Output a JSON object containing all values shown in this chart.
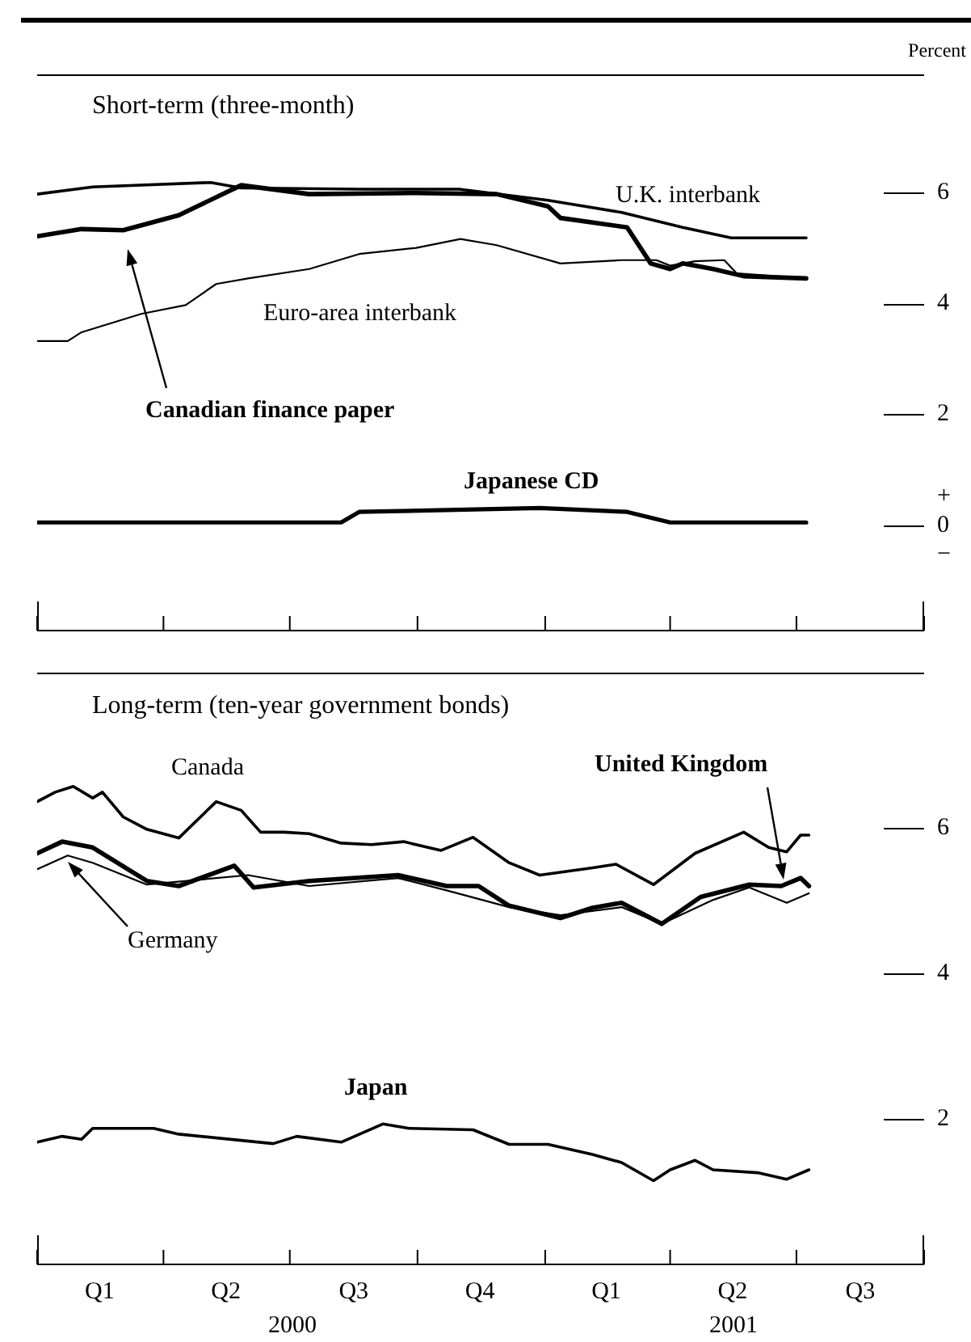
{
  "chart_data": [
    {
      "type": "line",
      "title": "Short-term (three-month)",
      "ylabel": "Percent",
      "xlim": [
        "2000-01-01",
        "2001-10-01"
      ],
      "xticks": [
        {
          "value": "2000-01-01",
          "label": null
        },
        {
          "value": "2000-04-01",
          "label": null
        },
        {
          "value": "2000-07-01",
          "label": null
        },
        {
          "value": "2000-10-01",
          "label": null
        },
        {
          "value": "2001-01-01",
          "label": null
        },
        {
          "value": "2001-04-01",
          "label": null
        },
        {
          "value": "2001-07-01",
          "label": null
        },
        {
          "value": "2001-10-01",
          "label": null
        }
      ],
      "ylim": [
        -1.9,
        8.1
      ],
      "yticks": [
        {
          "value": 0,
          "label": "+\n0\n−"
        },
        2,
        4,
        6
      ],
      "tick_labels": "y",
      "legend": false,
      "grid": false,
      "marker": "none",
      "line_style": "solid",
      "series": [
        {
          "name": "U.K. interbank",
          "color": "#000000",
          "x": [
            "2000-01-01",
            "2000-02-10",
            "2000-05-05",
            "2000-05-27",
            "2000-08-20",
            "2000-10-31",
            "2001-01-03",
            "2001-02-25",
            "2001-04-10",
            "2001-05-15",
            "2001-07-08"
          ],
          "values": [
            5.97,
            6.1,
            6.18,
            6.08,
            6.06,
            6.06,
            5.86,
            5.64,
            5.37,
            5.18,
            5.18
          ]
        },
        {
          "name": "Canadian finance paper",
          "color": "#000000",
          "x": [
            "2000-01-01",
            "2000-02-02",
            "2000-03-03",
            "2000-04-12",
            "2000-05-27",
            "2000-07-15",
            "2000-09-30",
            "2000-11-27",
            "2001-01-03",
            "2001-01-12",
            "2001-03-01",
            "2001-03-18",
            "2001-04-01",
            "2001-04-10",
            "2001-05-02",
            "2001-05-24",
            "2001-07-08"
          ],
          "values": [
            5.21,
            5.34,
            5.32,
            5.59,
            6.13,
            5.97,
            5.99,
            5.97,
            5.75,
            5.54,
            5.37,
            4.72,
            4.62,
            4.72,
            4.62,
            4.49,
            4.45
          ]
        },
        {
          "name": "Euro-area interbank",
          "color": "#000000",
          "x": [
            "2000-01-01",
            "2000-01-23",
            "2000-02-02",
            "2000-03-16",
            "2000-04-17",
            "2000-05-09",
            "2000-06-01",
            "2000-07-15",
            "2000-08-20",
            "2000-09-30",
            "2000-11-01",
            "2000-11-27",
            "2001-01-12",
            "2001-02-25",
            "2001-03-22",
            "2001-04-01",
            "2001-04-19",
            "2001-05-10",
            "2001-05-19",
            "2001-07-08"
          ],
          "values": [
            3.32,
            3.32,
            3.48,
            3.81,
            3.97,
            4.35,
            4.45,
            4.62,
            4.89,
            5.0,
            5.16,
            5.05,
            4.72,
            4.78,
            4.78,
            4.68,
            4.76,
            4.78,
            4.54,
            4.45
          ]
        },
        {
          "name": "Japanese CD",
          "color": "#000000",
          "x": [
            "2000-01-01",
            "2000-08-07",
            "2000-08-20",
            "2000-12-28",
            "2001-03-01",
            "2001-04-01",
            "2001-07-08"
          ],
          "values": [
            0.05,
            0.05,
            0.24,
            0.31,
            0.24,
            0.05,
            0.05
          ]
        }
      ]
    },
    {
      "type": "line",
      "title": "Long-term (ten-year government bonds)",
      "xlim": [
        "2000-01-01",
        "2001-10-01"
      ],
      "xticks": [
        {
          "value": "2000-01-01",
          "label": null
        },
        {
          "value": "2000-02-15",
          "label": "Q1"
        },
        {
          "value": "2000-04-01",
          "label": null
        },
        {
          "value": "2000-05-16",
          "label": "Q2"
        },
        {
          "value": "2000-07-01",
          "label": null
        },
        {
          "value": "2000-08-16",
          "label": "Q3"
        },
        {
          "value": "2000-10-01",
          "label": null
        },
        {
          "value": "2000-11-15",
          "label": "Q4"
        },
        {
          "value": "2001-01-01",
          "label": null
        },
        {
          "value": "2001-02-14",
          "label": "Q1"
        },
        {
          "value": "2001-04-01",
          "label": null
        },
        {
          "value": "2001-05-16",
          "label": "Q2"
        },
        {
          "value": "2001-07-01",
          "label": null
        },
        {
          "value": "2001-08-16",
          "label": "Q3"
        },
        {
          "value": "2001-10-01",
          "label": null
        }
      ],
      "ylim": [
        0,
        8
      ],
      "yticks": [
        2,
        4,
        6
      ],
      "legend": false,
      "grid": false,
      "marker": "none",
      "line_style": "solid",
      "annotations": [
        "2000",
        "2001"
      ],
      "series": [
        {
          "name": "Canada",
          "color": "#000000",
          "x": [
            "2000-01-01",
            "2000-01-14",
            "2000-01-27",
            "2000-02-10",
            "2000-02-17",
            "2000-03-03",
            "2000-03-20",
            "2000-04-12",
            "2000-05-09",
            "2000-05-27",
            "2000-06-10",
            "2000-06-27",
            "2000-07-15",
            "2000-08-07",
            "2000-08-29",
            "2000-09-21",
            "2000-10-18",
            "2000-11-10",
            "2000-12-06",
            "2000-12-28",
            "2001-02-04",
            "2001-02-21",
            "2001-03-20",
            "2001-04-19",
            "2001-05-24",
            "2001-06-11",
            "2001-06-24",
            "2001-07-04",
            "2001-07-10"
          ],
          "values": [
            6.36,
            6.49,
            6.57,
            6.41,
            6.49,
            6.15,
            5.98,
            5.86,
            6.36,
            6.24,
            5.94,
            5.94,
            5.92,
            5.79,
            5.77,
            5.81,
            5.69,
            5.87,
            5.52,
            5.35,
            5.45,
            5.5,
            5.22,
            5.65,
            5.94,
            5.73,
            5.67,
            5.9,
            5.9
          ]
        },
        {
          "name": "United Kingdom",
          "color": "#000000",
          "x": [
            "2000-01-01",
            "2000-01-19",
            "2000-02-10",
            "2000-03-20",
            "2000-04-12",
            "2000-05-22",
            "2000-06-05",
            "2000-07-15",
            "2000-09-17",
            "2000-10-22",
            "2000-11-14",
            "2000-12-06",
            "2001-01-12",
            "2001-02-04",
            "2001-02-25",
            "2001-03-26",
            "2001-04-23",
            "2001-05-28",
            "2001-06-20",
            "2001-07-04",
            "2001-07-10"
          ],
          "values": [
            5.65,
            5.81,
            5.73,
            5.27,
            5.2,
            5.48,
            5.18,
            5.27,
            5.35,
            5.2,
            5.2,
            4.93,
            4.76,
            4.9,
            4.97,
            4.68,
            5.05,
            5.22,
            5.2,
            5.31,
            5.2
          ]
        },
        {
          "name": "Germany",
          "color": "#000000",
          "x": [
            "2000-01-01",
            "2000-01-23",
            "2000-02-10",
            "2000-03-20",
            "2000-06-01",
            "2000-07-15",
            "2000-09-17",
            "2000-10-22",
            "2000-12-06",
            "2001-01-12",
            "2001-02-25",
            "2001-03-26",
            "2001-05-02",
            "2001-05-28",
            "2001-06-24",
            "2001-07-10"
          ],
          "values": [
            5.43,
            5.62,
            5.52,
            5.22,
            5.35,
            5.2,
            5.31,
            5.14,
            4.91,
            4.8,
            4.91,
            4.68,
            5.01,
            5.18,
            4.97,
            5.1
          ]
        },
        {
          "name": "Japan",
          "color": "#000000",
          "x": [
            "2000-01-01",
            "2000-01-19",
            "2000-02-02",
            "2000-02-10",
            "2000-03-25",
            "2000-04-12",
            "2000-06-19",
            "2000-07-06",
            "2000-08-07",
            "2000-09-06",
            "2000-09-25",
            "2000-11-10",
            "2000-12-06",
            "2001-01-03",
            "2001-02-04",
            "2001-02-25",
            "2001-03-20",
            "2001-04-01",
            "2001-04-19",
            "2001-05-02",
            "2001-06-03",
            "2001-06-24",
            "2001-07-10"
          ],
          "values": [
            1.68,
            1.76,
            1.72,
            1.87,
            1.87,
            1.79,
            1.66,
            1.76,
            1.68,
            1.93,
            1.87,
            1.85,
            1.65,
            1.65,
            1.51,
            1.4,
            1.15,
            1.3,
            1.43,
            1.3,
            1.26,
            1.17,
            1.3
          ]
        }
      ]
    }
  ]
}
